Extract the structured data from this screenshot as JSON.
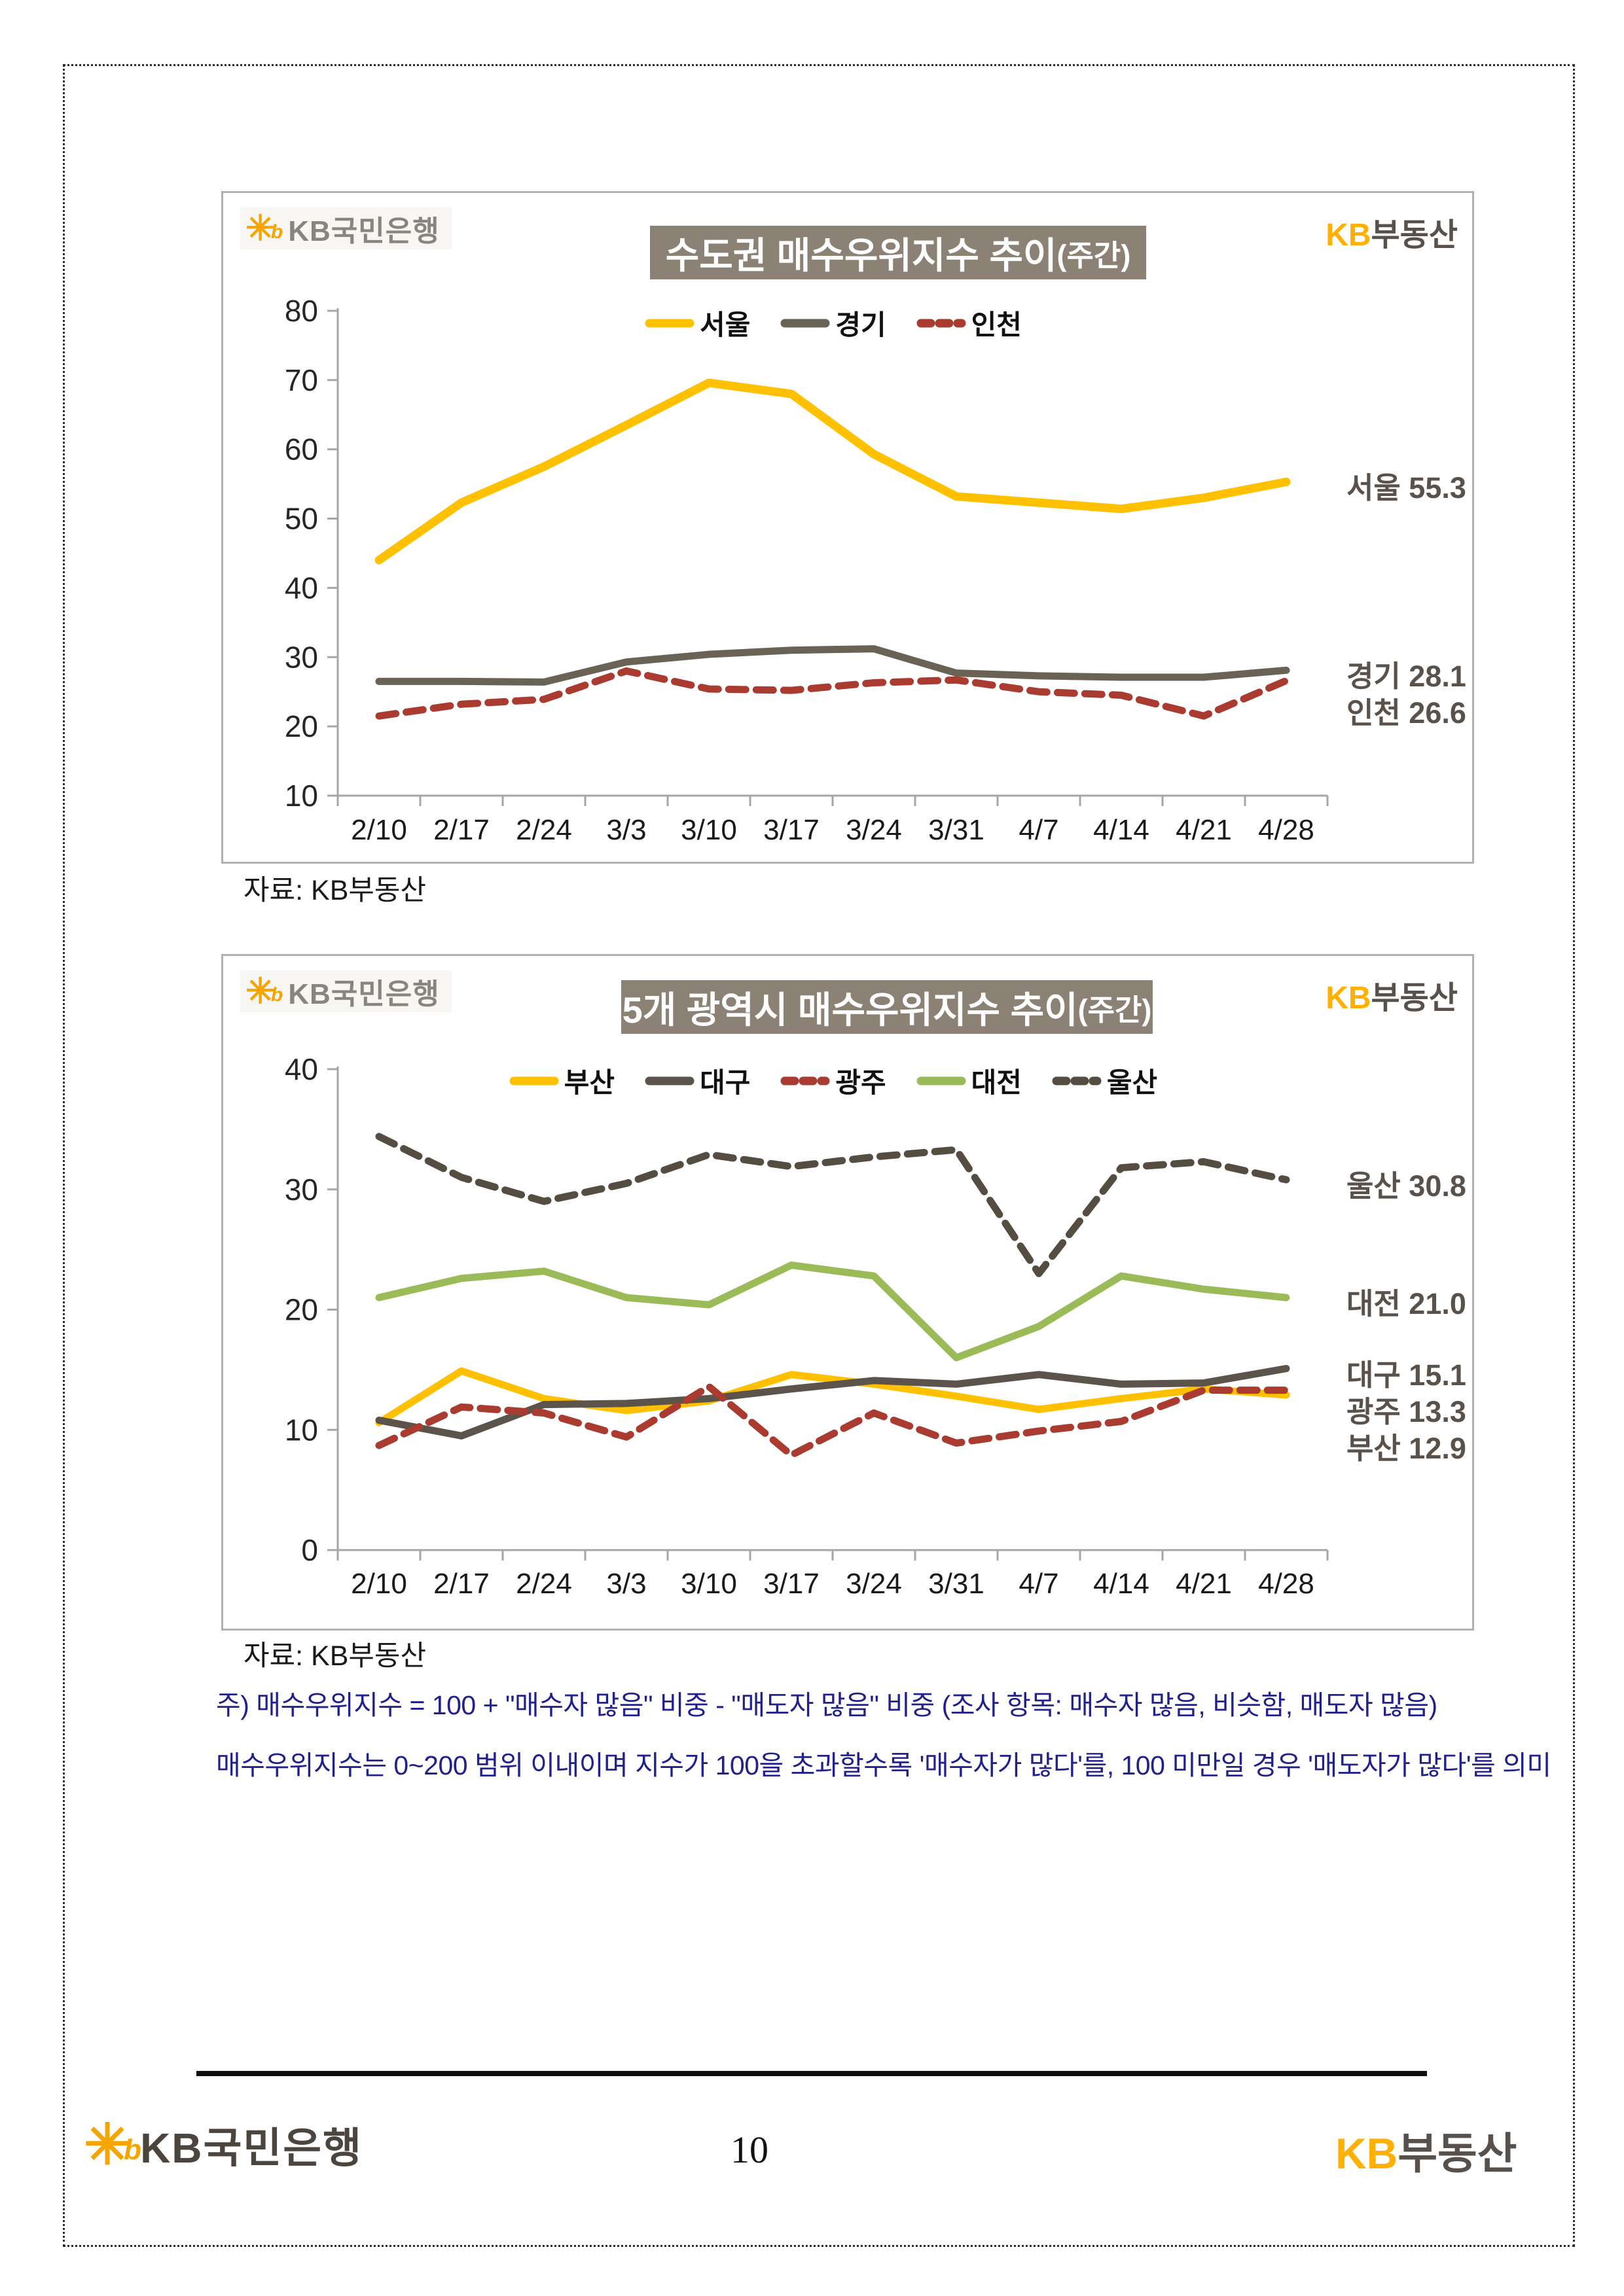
{
  "page": {
    "source_note": "자료: KB부동산",
    "notes": [
      "주) 매수우위지수 = 100 + \"매수자 많음\" 비중 - \"매도자 많음\" 비중  (조사 항목: 매수자 많음, 비슷함, 매도자 많음)",
      "매수우위지수는 0~200 범위 이내이며 지수가 100을 초과할수록 '매수자가 많다'를, 100 미만일 경우 '매도자가 많다'를 의미"
    ],
    "page_number": "10",
    "logos": {
      "kb_bank": "KB국민은행",
      "kb_realty_prefix": "KB",
      "kb_realty_suffix": "부동산",
      "star_mark": "✳",
      "star_b": "b"
    },
    "colors": {
      "accent_yellow": "#FFC000",
      "title_bar_bg": "#8b8275",
      "note_navy": "#21218b",
      "end_label_gray": "#5a524a"
    }
  },
  "chart_data": [
    {
      "type": "line",
      "title": "수도권 매수우위지수 추이",
      "title_suffix": "(주간)",
      "categories": [
        "2/10",
        "2/17",
        "2/24",
        "3/3",
        "3/10",
        "3/17",
        "3/24",
        "3/31",
        "4/7",
        "4/14",
        "4/21",
        "4/28"
      ],
      "ylim": [
        10,
        80
      ],
      "yticks": [
        80,
        70,
        60,
        50,
        40,
        30,
        20,
        10
      ],
      "grid": false,
      "legend_position": "top-center",
      "series": [
        {
          "name": "서울",
          "color": "#FFC000",
          "style": "solid",
          "values": [
            44.0,
            52.3,
            57.5,
            63.5,
            69.6,
            68.0,
            59.3,
            53.2,
            52.3,
            51.4,
            53.0,
            55.3
          ],
          "end_label": "서울 55.3"
        },
        {
          "name": "경기",
          "color": "#6a6254",
          "style": "solid",
          "values": [
            26.5,
            26.5,
            26.4,
            29.3,
            30.4,
            31.0,
            31.2,
            27.7,
            27.3,
            27.1,
            27.1,
            28.1
          ],
          "end_label": "경기 28.1"
        },
        {
          "name": "인천",
          "color": "#a93b30",
          "style": "dashed",
          "values": [
            21.5,
            23.2,
            23.9,
            28.0,
            25.4,
            25.2,
            26.3,
            26.7,
            25.0,
            24.5,
            21.5,
            26.6
          ],
          "end_label": "인천 26.6"
        }
      ],
      "source": "자료: KB부동산"
    },
    {
      "type": "line",
      "title": "5개 광역시 매수우위지수 추이",
      "title_suffix": "(주간)",
      "categories": [
        "2/10",
        "2/17",
        "2/24",
        "3/3",
        "3/10",
        "3/17",
        "3/24",
        "3/31",
        "4/7",
        "4/14",
        "4/21",
        "4/28"
      ],
      "ylim": [
        0,
        40
      ],
      "yticks": [
        40,
        30,
        20,
        10,
        0
      ],
      "grid": false,
      "legend_position": "top-center",
      "series": [
        {
          "name": "부산",
          "color": "#FFC000",
          "style": "solid",
          "values": [
            10.6,
            14.9,
            12.6,
            11.6,
            12.4,
            14.6,
            13.8,
            12.8,
            11.7,
            12.6,
            13.4,
            12.9
          ],
          "end_label": "부산 12.9"
        },
        {
          "name": "대구",
          "color": "#5c544b",
          "style": "solid",
          "values": [
            10.8,
            9.5,
            12.1,
            12.2,
            12.6,
            13.4,
            14.1,
            13.8,
            14.6,
            13.8,
            13.9,
            15.1
          ],
          "end_label": "대구 15.1"
        },
        {
          "name": "광주",
          "color": "#a93b30",
          "style": "dashed",
          "values": [
            8.7,
            11.9,
            11.4,
            9.4,
            13.6,
            7.9,
            11.4,
            8.9,
            9.9,
            10.7,
            13.3,
            13.3
          ],
          "end_label": "광주 13.3"
        },
        {
          "name": "대전",
          "color": "#9bbb59",
          "style": "solid",
          "values": [
            21.0,
            22.6,
            23.2,
            21.0,
            20.4,
            23.7,
            22.8,
            16.0,
            18.6,
            22.8,
            21.7,
            21.0
          ],
          "end_label": "대전 21.0"
        },
        {
          "name": "울산",
          "color": "#554d42",
          "style": "dashed",
          "values": [
            34.4,
            31.0,
            29.0,
            30.5,
            32.9,
            31.9,
            32.7,
            33.3,
            23.0,
            31.8,
            32.3,
            30.8
          ],
          "end_label": "울산 30.8"
        }
      ],
      "source": "자료: KB부동산"
    }
  ]
}
